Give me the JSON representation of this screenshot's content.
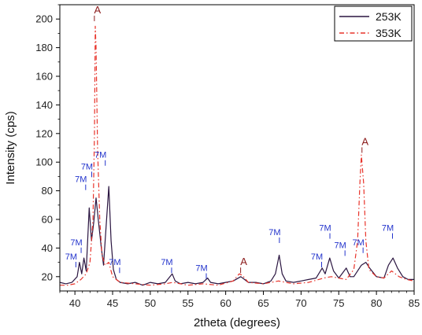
{
  "chart_data": {
    "type": "line",
    "xlabel": "2theta (degrees)",
    "ylabel": "Intensity (cps)",
    "xlim": [
      38,
      85
    ],
    "ylim": [
      10,
      210
    ],
    "xticks": [
      40,
      45,
      50,
      55,
      60,
      65,
      70,
      75,
      80,
      85
    ],
    "yticks": [
      20,
      40,
      60,
      80,
      100,
      120,
      140,
      160,
      180,
      200
    ],
    "legend_position": "top-right",
    "series": [
      {
        "name": "253K",
        "color": "#2a1540",
        "style": "solid",
        "points": [
          [
            38,
            16
          ],
          [
            38.8,
            15
          ],
          [
            39.6,
            16
          ],
          [
            40.3,
            20
          ],
          [
            40.6,
            30
          ],
          [
            40.9,
            22
          ],
          [
            41.2,
            33
          ],
          [
            41.5,
            24
          ],
          [
            41.9,
            68
          ],
          [
            42.2,
            45
          ],
          [
            42.5,
            58
          ],
          [
            42.8,
            75
          ],
          [
            43.1,
            60
          ],
          [
            43.5,
            40
          ],
          [
            43.8,
            28
          ],
          [
            44.1,
            52
          ],
          [
            44.5,
            83
          ],
          [
            44.8,
            45
          ],
          [
            45.1,
            25
          ],
          [
            45.5,
            18
          ],
          [
            46,
            16
          ],
          [
            47,
            15
          ],
          [
            48,
            16
          ],
          [
            49,
            14
          ],
          [
            50,
            16
          ],
          [
            51,
            15
          ],
          [
            52,
            16
          ],
          [
            52.9,
            22
          ],
          [
            53.3,
            17
          ],
          [
            54,
            15
          ],
          [
            55,
            16
          ],
          [
            56,
            15
          ],
          [
            57,
            16
          ],
          [
            57.6,
            19
          ],
          [
            58,
            16
          ],
          [
            59,
            15
          ],
          [
            60,
            16
          ],
          [
            61,
            17
          ],
          [
            62,
            20
          ],
          [
            62.5,
            18
          ],
          [
            63,
            16
          ],
          [
            64,
            16
          ],
          [
            65,
            15
          ],
          [
            66,
            17
          ],
          [
            66.6,
            22
          ],
          [
            67.1,
            35
          ],
          [
            67.5,
            22
          ],
          [
            68,
            17
          ],
          [
            69,
            16
          ],
          [
            70,
            17
          ],
          [
            71,
            18
          ],
          [
            72,
            19
          ],
          [
            72.8,
            26
          ],
          [
            73.2,
            22
          ],
          [
            73.8,
            33
          ],
          [
            74.3,
            24
          ],
          [
            75,
            19
          ],
          [
            76,
            26
          ],
          [
            76.5,
            20
          ],
          [
            77,
            20
          ],
          [
            78,
            28
          ],
          [
            78.6,
            30
          ],
          [
            79.1,
            26
          ],
          [
            80,
            20
          ],
          [
            81,
            19
          ],
          [
            81.6,
            28
          ],
          [
            82.2,
            33
          ],
          [
            82.8,
            26
          ],
          [
            83.5,
            20
          ],
          [
            84.2,
            18
          ],
          [
            85,
            18
          ]
        ]
      },
      {
        "name": "353K",
        "color": "#e8332a",
        "style": "dash-dot",
        "points": [
          [
            38,
            14
          ],
          [
            39,
            14
          ],
          [
            40,
            15
          ],
          [
            40.8,
            18
          ],
          [
            41.5,
            22
          ],
          [
            42,
            30
          ],
          [
            42.4,
            60
          ],
          [
            42.6,
            120
          ],
          [
            42.7,
            195
          ],
          [
            42.8,
            180
          ],
          [
            43,
            110
          ],
          [
            43.3,
            60
          ],
          [
            43.6,
            35
          ],
          [
            44,
            28
          ],
          [
            44.5,
            30
          ],
          [
            45,
            20
          ],
          [
            46,
            16
          ],
          [
            48,
            15
          ],
          [
            50,
            14
          ],
          [
            52,
            15
          ],
          [
            53,
            16
          ],
          [
            55,
            14
          ],
          [
            57,
            15
          ],
          [
            59,
            14
          ],
          [
            61,
            17
          ],
          [
            61.8,
            22
          ],
          [
            62.2,
            21
          ],
          [
            63,
            16
          ],
          [
            65,
            15
          ],
          [
            67,
            17
          ],
          [
            69,
            15
          ],
          [
            71,
            16
          ],
          [
            73,
            19
          ],
          [
            74,
            20
          ],
          [
            75,
            19
          ],
          [
            76,
            18
          ],
          [
            77,
            25
          ],
          [
            77.5,
            45
          ],
          [
            77.8,
            85
          ],
          [
            78,
            105
          ],
          [
            78.3,
            85
          ],
          [
            78.6,
            45
          ],
          [
            79,
            25
          ],
          [
            80,
            20
          ],
          [
            81,
            19
          ],
          [
            82,
            24
          ],
          [
            82.5,
            22
          ],
          [
            83,
            20
          ],
          [
            84,
            18
          ],
          [
            85,
            17
          ]
        ]
      }
    ],
    "annotations": [
      {
        "text": "A",
        "x": 43.0,
        "y": 204,
        "color": "#8b1a1a"
      },
      {
        "text": "A",
        "x": 62.4,
        "y": 28,
        "color": "#8b1a1a"
      },
      {
        "text": "A",
        "x": 78.5,
        "y": 112,
        "color": "#8b1a1a"
      },
      {
        "text": "7M",
        "x": 39.5,
        "y": 32,
        "color": "#2233cc"
      },
      {
        "text": "7M",
        "x": 40.2,
        "y": 42,
        "color": "#2233cc"
      },
      {
        "text": "7M",
        "x": 40.8,
        "y": 86,
        "color": "#2233cc"
      },
      {
        "text": "7M",
        "x": 41.6,
        "y": 95,
        "color": "#2233cc"
      },
      {
        "text": "7M",
        "x": 43.4,
        "y": 103,
        "color": "#2233cc"
      },
      {
        "text": "7M",
        "x": 45.3,
        "y": 28,
        "color": "#2233cc"
      },
      {
        "text": "7M",
        "x": 52.2,
        "y": 28,
        "color": "#2233cc"
      },
      {
        "text": "7M",
        "x": 56.8,
        "y": 24,
        "color": "#2233cc"
      },
      {
        "text": "7M",
        "x": 66.5,
        "y": 49,
        "color": "#2233cc"
      },
      {
        "text": "7M",
        "x": 72.1,
        "y": 32,
        "color": "#2233cc"
      },
      {
        "text": "7M",
        "x": 73.2,
        "y": 52,
        "color": "#2233cc"
      },
      {
        "text": "7M",
        "x": 75.2,
        "y": 40,
        "color": "#2233cc"
      },
      {
        "text": "7M",
        "x": 77.6,
        "y": 42,
        "color": "#2233cc"
      },
      {
        "text": "7M",
        "x": 81.5,
        "y": 52,
        "color": "#2233cc"
      }
    ]
  }
}
